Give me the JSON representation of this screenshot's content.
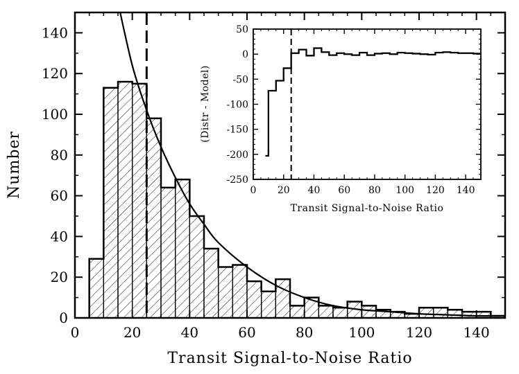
{
  "chart_data": [
    {
      "type": "bar",
      "subtype": "histogram",
      "xlabel": "Transit Signal-to-Noise Ratio",
      "ylabel": "Number",
      "xlim": [
        0,
        150
      ],
      "ylim": [
        0,
        150
      ],
      "xticks": [
        0,
        20,
        40,
        60,
        80,
        100,
        120,
        140
      ],
      "yticks": [
        0,
        20,
        40,
        60,
        80,
        100,
        120,
        140
      ],
      "bin_edges": [
        5,
        10,
        15,
        20,
        25,
        30,
        35,
        40,
        45,
        50,
        55,
        60,
        65,
        70,
        75,
        80,
        85,
        90,
        95,
        100,
        105,
        110,
        115,
        120,
        125,
        130,
        135,
        140,
        145,
        150
      ],
      "counts": [
        29,
        113,
        116,
        115,
        98,
        64,
        68,
        50,
        34,
        25,
        26,
        18,
        13,
        19,
        6,
        10,
        6,
        5,
        8,
        6,
        4,
        3,
        2,
        5,
        5,
        4,
        3,
        3,
        1
      ],
      "hatched": true,
      "model_curve": {
        "type": "exponential",
        "points": [
          [
            15,
            155
          ],
          [
            20,
            124
          ],
          [
            25,
            102
          ],
          [
            30,
            84
          ],
          [
            35,
            69
          ],
          [
            40,
            56
          ],
          [
            45,
            46
          ],
          [
            50,
            37
          ],
          [
            60,
            25
          ],
          [
            70,
            16
          ],
          [
            80,
            10
          ],
          [
            90,
            6
          ],
          [
            100,
            4
          ],
          [
            110,
            3
          ],
          [
            120,
            2
          ],
          [
            130,
            1.5
          ],
          [
            140,
            1
          ],
          [
            150,
            1
          ]
        ]
      },
      "threshold_line": {
        "x": 25,
        "style": "dashed"
      },
      "grid": false
    },
    {
      "type": "line",
      "subtype": "step",
      "inset": true,
      "xlabel": "Transit Signal-to-Noise Ratio",
      "ylabel": "(Distr - Model)",
      "xlim": [
        0,
        150
      ],
      "ylim": [
        -250,
        50
      ],
      "xticks": [
        0,
        20,
        40,
        60,
        80,
        100,
        120,
        140
      ],
      "yticks": [
        50,
        0,
        -50,
        -100,
        -150,
        -200,
        -250
      ],
      "bin_edges": [
        8,
        10,
        15,
        20,
        25,
        30,
        35,
        40,
        45,
        50,
        55,
        60,
        65,
        70,
        75,
        80,
        85,
        90,
        95,
        100,
        105,
        110,
        115,
        120,
        125,
        130,
        135,
        140,
        145,
        150
      ],
      "values": [
        -203,
        -73,
        -53,
        -28,
        2,
        9,
        -3,
        12,
        4,
        -2,
        2,
        0,
        -2,
        3,
        -2,
        1,
        2,
        0,
        3,
        2,
        1,
        0,
        -1,
        3,
        4,
        3,
        2,
        2,
        1
      ],
      "threshold_line": {
        "x": 25,
        "style": "dashed"
      },
      "grid": false
    }
  ]
}
